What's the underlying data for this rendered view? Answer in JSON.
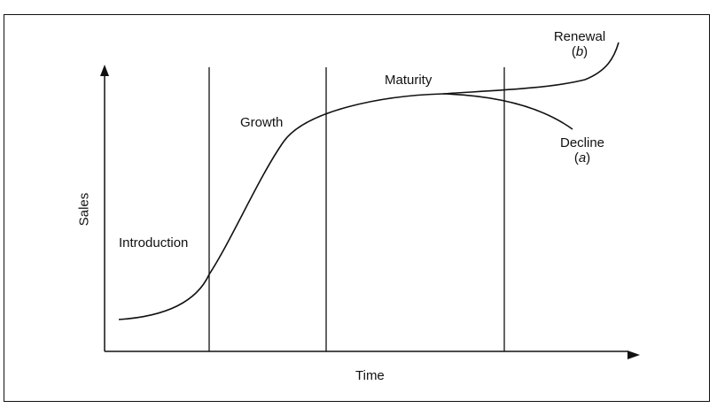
{
  "axes": {
    "y_label": "Sales",
    "x_label": "Time"
  },
  "stages": {
    "introduction": "Introduction",
    "growth": "Growth",
    "maturity": "Maturity",
    "decline": {
      "label": "Decline",
      "tag_open": "(",
      "tag_letter": "a",
      "tag_close": ")"
    },
    "renewal": {
      "label": "Renewal",
      "tag_open": "(",
      "tag_letter": "b",
      "tag_close": ")"
    }
  },
  "colors": {
    "ink": "#111111",
    "background": "#ffffff"
  }
}
